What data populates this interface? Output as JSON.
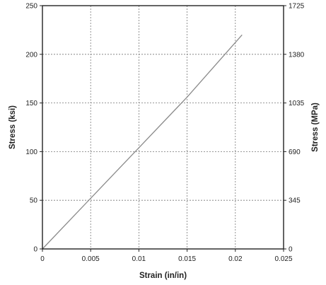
{
  "chart_data": {
    "type": "line",
    "title": "",
    "xlabel": "Strain (in/in)",
    "ylabel": "Stress (ksi)",
    "ylabel_right": "Stress (MPa)",
    "xlim": [
      0,
      0.025
    ],
    "ylim": [
      0,
      250
    ],
    "ylim_right": [
      0,
      1725
    ],
    "x_ticks": [
      0,
      0.005,
      0.01,
      0.015,
      0.02,
      0.025
    ],
    "x_tick_labels": [
      "0",
      "0.005",
      "0.01",
      "0.015",
      "0.02",
      "0.025"
    ],
    "y_ticks": [
      0,
      50,
      100,
      150,
      200,
      250
    ],
    "y_tick_labels": [
      "0",
      "50",
      "100",
      "150",
      "200",
      "250"
    ],
    "y_right_ticks": [
      0,
      345,
      690,
      1035,
      1380,
      1725
    ],
    "y_right_tick_labels": [
      "0",
      "345",
      "690",
      "1035",
      "1380",
      "1725"
    ],
    "grid": true,
    "legend": "none",
    "series": [
      {
        "x": [
          0,
          0.005,
          0.01,
          0.015,
          0.0207
        ],
        "y": [
          0,
          52,
          104,
          156,
          220
        ],
        "color": "#8a8a8a"
      }
    ]
  }
}
